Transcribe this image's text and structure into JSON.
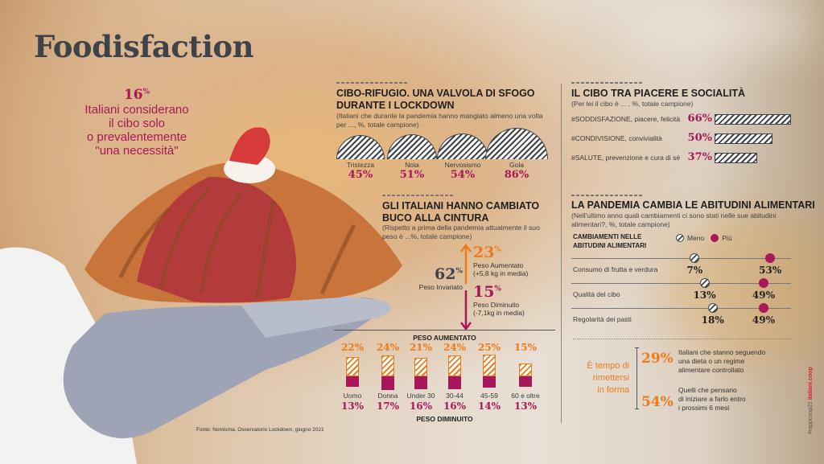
{
  "title": "Foodisfaction",
  "highlight": {
    "value": "16",
    "unit": "%",
    "lines": [
      "Italiani considerano",
      "il cibo solo",
      "o prevalentemente",
      "\"una necessità\""
    ]
  },
  "source": "Fonte: Nomisma, Osservatorio Lockdown, giugno 2021",
  "side_credit": {
    "hashtag": "#rappcoop21",
    "site": "italiani.coop"
  },
  "colors": {
    "pink": "#a8175a",
    "orange": "#ef7a1a",
    "dark": "#3d4349"
  },
  "chart_data": [
    {
      "type": "bar",
      "id": "cibo-rifugio",
      "title": "CIBO-RIFUGIO. UNA VALVOLA DI SFOGO DURANTE I LOCKDOWN",
      "subtitle": "(Italiani che durante la pandemia hanno mangiato almeno una volta per ..., %, totale campione)",
      "categories": [
        "Tristezza",
        "Noia",
        "Nervosismo",
        "Gola"
      ],
      "values": [
        45,
        51,
        54,
        86
      ],
      "labels": [
        "45%",
        "51%",
        "54%",
        "86%"
      ]
    },
    {
      "type": "bar",
      "id": "piacere-socialita",
      "title": "IL CIBO TRA PIACERE E SOCIALITÀ",
      "subtitle": "(Per lei il cibo è ... , %, totale campione)",
      "categories": [
        "#SODDISFAZIONE, piacere, felicità",
        "#CONDIVISIONE, convivialità",
        "#SALUTE, prevenzione e cura di sé"
      ],
      "values": [
        66,
        50,
        37
      ],
      "labels": [
        "66%",
        "50%",
        "37%"
      ]
    },
    {
      "type": "table",
      "id": "peso",
      "title": "GLI ITALIANI HANNO CAMBIATO BUCO ALLA CINTURA",
      "subtitle": "(Rispetto a prima della pandemia attualmente il suo peso è ...%, totale campione)",
      "items": [
        {
          "value": "62",
          "unit": "%",
          "label": "Peso Invariato",
          "note": ""
        },
        {
          "value": "23",
          "unit": "%",
          "label": "Peso Aumentato",
          "note": "(+5,8 kg in media)"
        },
        {
          "value": "15",
          "unit": "%",
          "label": "Peso Diminuito",
          "note": "(-7,1kg in media)"
        }
      ]
    },
    {
      "type": "bar",
      "id": "peso-segmenti",
      "top_label": "PESO AUMENTATO",
      "bottom_label": "PESO DIMINUITO",
      "categories": [
        "Uomo",
        "Donna",
        "Under 30",
        "30-44",
        "45-59",
        "60 e oltre"
      ],
      "series": [
        {
          "name": "Peso aumentato",
          "values": [
            22,
            24,
            21,
            24,
            25,
            15
          ],
          "labels": [
            "22%",
            "24%",
            "21%",
            "24%",
            "25%",
            "15%"
          ]
        },
        {
          "name": "Peso diminuito",
          "values": [
            13,
            17,
            16,
            16,
            14,
            13
          ],
          "labels": [
            "13%",
            "17%",
            "16%",
            "16%",
            "14%",
            "13%"
          ]
        }
      ]
    },
    {
      "type": "scatter",
      "id": "abitudini",
      "title": "LA PANDEMIA CAMBIA LE ABITUDINI ALIMENTARI",
      "subtitle": "(Nell'ultimo anno quali cambiamenti ci sono stati nelle sue abitudini alimentari?, %, totale campione)",
      "header": "CAMBIAMENTI NELLE ABITUDINI ALIMENTARI",
      "categories": [
        "Consumo di frutta e verdura",
        "Qualità del cibo",
        "Regolarità dei pasti"
      ],
      "series": [
        {
          "name": "Meno",
          "values": [
            7,
            13,
            18
          ],
          "labels": [
            "7%",
            "13%",
            "18%"
          ]
        },
        {
          "name": "Più",
          "values": [
            53,
            49,
            49
          ],
          "labels": [
            "53%",
            "49%",
            "49%"
          ]
        }
      ]
    }
  ],
  "forma": {
    "heading": [
      "È tempo di",
      "rimettersi",
      "in forma"
    ],
    "items": [
      {
        "value": "29%",
        "text": [
          "Italiani che stanno seguendo",
          "una dieta o un regime",
          "alimentare controllato"
        ]
      },
      {
        "value": "54%",
        "text": [
          "Quelli che pensano",
          "di iniziare a farlo entro",
          "i prossimi 6 mesi"
        ]
      }
    ]
  }
}
